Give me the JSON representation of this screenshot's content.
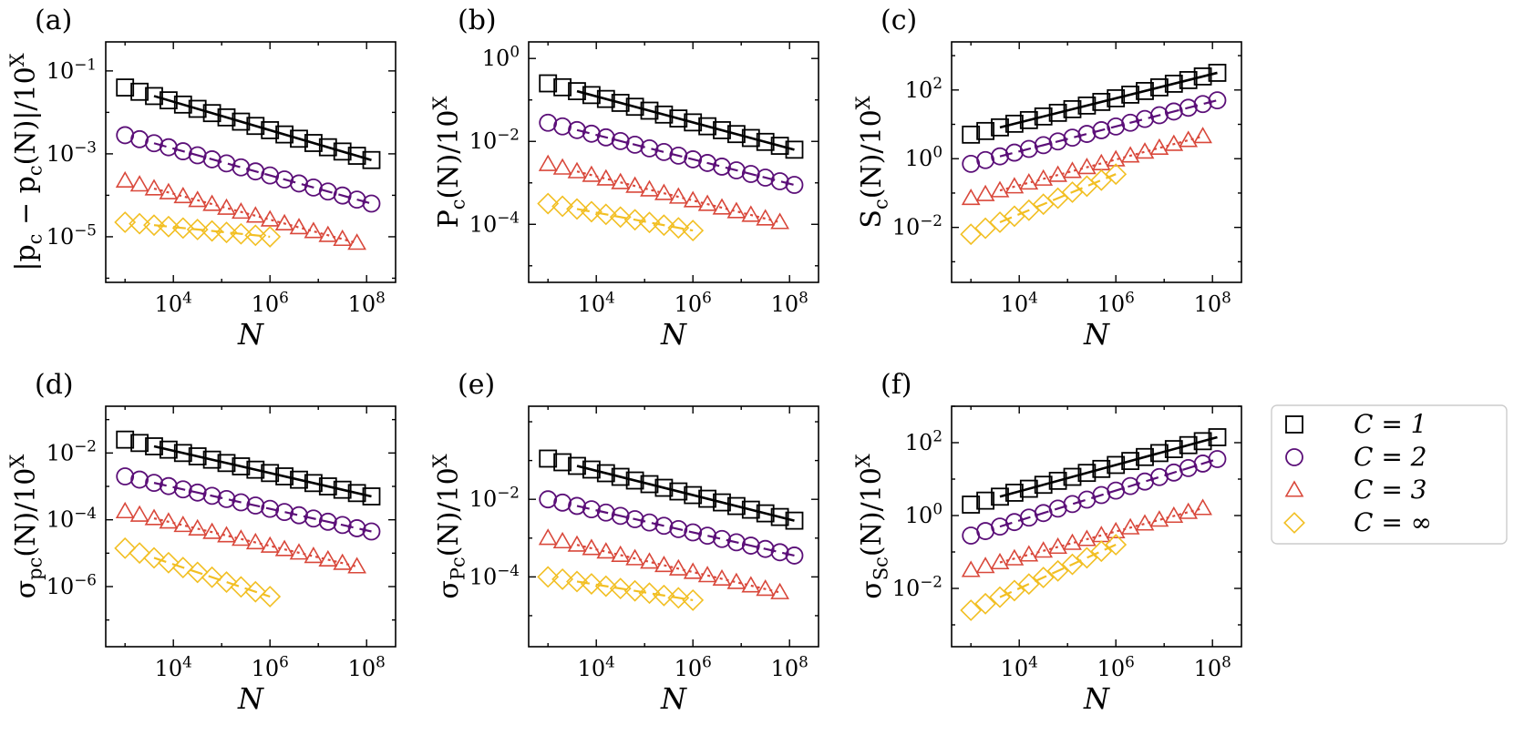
{
  "colors": {
    "C1": "#000000",
    "C2": "#5b0f78",
    "C3": "#d9483b",
    "Cinf": "#f2bf23"
  },
  "legend": {
    "entries": [
      {
        "label": "C = 1",
        "marker": "square",
        "color_key": "C1"
      },
      {
        "label": "C = 2",
        "marker": "circle",
        "color_key": "C2"
      },
      {
        "label": "C = 3",
        "marker": "triangle",
        "color_key": "C3"
      },
      {
        "label": "C = ∞",
        "marker": "diamond",
        "color_key": "Cinf"
      }
    ]
  },
  "chart_data": [
    {
      "panel": "(a)",
      "type": "scatter",
      "xscale": "log",
      "yscale": "log",
      "xlabel": "N",
      "ylabel": "|p_c − p_c(N)|/10^X",
      "xlim_exp": [
        2.6,
        8.6
      ],
      "ylim_exp": [
        -6.1,
        -0.3
      ],
      "xticks": [
        "10^4",
        "10^6",
        "10^8"
      ],
      "yticks": [
        "10^-1",
        "10^-3",
        "10^-5"
      ],
      "series": [
        {
          "name": "C = 1",
          "marker": "square",
          "color_key": "C1",
          "fit": "solid",
          "x_exp_start": 3.0,
          "x_exp_end": 8.1,
          "y_exp_start": -1.4,
          "y_exp_end": -3.15,
          "n_points": 18
        },
        {
          "name": "C = 2",
          "marker": "circle",
          "color_key": "C2",
          "fit": "dashed",
          "x_exp_start": 3.0,
          "x_exp_end": 8.1,
          "y_exp_start": -2.55,
          "y_exp_end": -4.2,
          "n_points": 18
        },
        {
          "name": "C = 3",
          "marker": "triangle",
          "color_key": "C3",
          "fit": "dotted",
          "x_exp_start": 3.0,
          "x_exp_end": 7.8,
          "y_exp_start": -3.65,
          "y_exp_end": -5.15,
          "n_points": 17
        },
        {
          "name": "C = ∞",
          "marker": "diamond",
          "color_key": "Cinf",
          "fit": "dashed",
          "x_exp_start": 3.0,
          "x_exp_end": 6.0,
          "y_exp_start": -4.65,
          "y_exp_end": -5.0,
          "n_points": 11
        }
      ]
    },
    {
      "panel": "(b)",
      "type": "scatter",
      "xscale": "log",
      "yscale": "log",
      "xlabel": "N",
      "ylabel": "P_c(N)/10^X",
      "xlim_exp": [
        2.6,
        8.6
      ],
      "ylim_exp": [
        -5.4,
        0.4
      ],
      "xticks": [
        "10^4",
        "10^6",
        "10^8"
      ],
      "yticks": [
        "10^0",
        "10^-2",
        "10^-4"
      ],
      "series": [
        {
          "name": "C = 1",
          "marker": "square",
          "color_key": "C1",
          "fit": "solid",
          "x_exp_start": 3.0,
          "x_exp_end": 8.1,
          "y_exp_start": -0.6,
          "y_exp_end": -2.2,
          "n_points": 18
        },
        {
          "name": "C = 2",
          "marker": "circle",
          "color_key": "C2",
          "fit": "dashed",
          "x_exp_start": 3.0,
          "x_exp_end": 8.1,
          "y_exp_start": -1.55,
          "y_exp_end": -3.05,
          "n_points": 18
        },
        {
          "name": "C = 3",
          "marker": "triangle",
          "color_key": "C3",
          "fit": "dotted",
          "x_exp_start": 3.0,
          "x_exp_end": 7.8,
          "y_exp_start": -2.55,
          "y_exp_end": -3.95,
          "n_points": 17
        },
        {
          "name": "C = ∞",
          "marker": "diamond",
          "color_key": "Cinf",
          "fit": "dashed",
          "x_exp_start": 3.0,
          "x_exp_end": 6.0,
          "y_exp_start": -3.5,
          "y_exp_end": -4.15,
          "n_points": 11
        }
      ]
    },
    {
      "panel": "(c)",
      "type": "scatter",
      "xscale": "log",
      "yscale": "log",
      "xlabel": "N",
      "ylabel": "S_c(N)/10^X",
      "xlim_exp": [
        2.6,
        8.6
      ],
      "ylim_exp": [
        -3.6,
        3.4
      ],
      "xticks": [
        "10^4",
        "10^6",
        "10^8"
      ],
      "yticks": [
        "10^2",
        "10^0",
        "10^-2"
      ],
      "series": [
        {
          "name": "C = 1",
          "marker": "square",
          "color_key": "C1",
          "fit": "solid",
          "x_exp_start": 3.0,
          "x_exp_end": 8.1,
          "y_exp_start": 0.7,
          "y_exp_end": 2.5,
          "n_points": 18
        },
        {
          "name": "C = 2",
          "marker": "circle",
          "color_key": "C2",
          "fit": "dashed",
          "x_exp_start": 3.0,
          "x_exp_end": 8.1,
          "y_exp_start": -0.15,
          "y_exp_end": 1.7,
          "n_points": 18
        },
        {
          "name": "C = 3",
          "marker": "triangle",
          "color_key": "C3",
          "fit": "dotted",
          "x_exp_start": 3.0,
          "x_exp_end": 7.8,
          "y_exp_start": -1.15,
          "y_exp_end": 0.65,
          "n_points": 17
        },
        {
          "name": "C = ∞",
          "marker": "diamond",
          "color_key": "Cinf",
          "fit": "dashed",
          "x_exp_start": 3.0,
          "x_exp_end": 6.0,
          "y_exp_start": -2.2,
          "y_exp_end": -0.45,
          "n_points": 11
        }
      ]
    },
    {
      "panel": "(d)",
      "type": "scatter",
      "xscale": "log",
      "yscale": "log",
      "xlabel": "N",
      "ylabel": "σ_{p_c}(N)/10^X",
      "xlim_exp": [
        2.6,
        8.6
      ],
      "ylim_exp": [
        -7.8,
        -0.6
      ],
      "xticks": [
        "10^4",
        "10^6",
        "10^8"
      ],
      "yticks": [
        "10^-2",
        "10^-4",
        "10^-6"
      ],
      "series": [
        {
          "name": "C = 1",
          "marker": "square",
          "color_key": "C1",
          "fit": "solid",
          "x_exp_start": 3.0,
          "x_exp_end": 8.1,
          "y_exp_start": -1.6,
          "y_exp_end": -3.3,
          "n_points": 18
        },
        {
          "name": "C = 2",
          "marker": "circle",
          "color_key": "C2",
          "fit": "dashed",
          "x_exp_start": 3.0,
          "x_exp_end": 8.1,
          "y_exp_start": -2.7,
          "y_exp_end": -4.35,
          "n_points": 18
        },
        {
          "name": "C = 3",
          "marker": "triangle",
          "color_key": "C3",
          "fit": "dotted",
          "x_exp_start": 3.0,
          "x_exp_end": 7.8,
          "y_exp_start": -3.75,
          "y_exp_end": -5.4,
          "n_points": 17
        },
        {
          "name": "C = ∞",
          "marker": "diamond",
          "color_key": "Cinf",
          "fit": "dashed",
          "x_exp_start": 3.0,
          "x_exp_end": 6.0,
          "y_exp_start": -4.85,
          "y_exp_end": -6.3,
          "n_points": 11
        }
      ]
    },
    {
      "panel": "(e)",
      "type": "scatter",
      "xscale": "log",
      "yscale": "log",
      "xlabel": "N",
      "ylabel": "σ_{P_c}(N)/10^X",
      "xlim_exp": [
        2.6,
        8.6
      ],
      "ylim_exp": [
        -5.8,
        0.4
      ],
      "xticks": [
        "10^4",
        "10^6",
        "10^8"
      ],
      "yticks": [
        "10^-2",
        "10^-4"
      ],
      "series": [
        {
          "name": "C = 1",
          "marker": "square",
          "color_key": "C1",
          "fit": "solid",
          "x_exp_start": 3.0,
          "x_exp_end": 8.1,
          "y_exp_start": -0.95,
          "y_exp_end": -2.55,
          "n_points": 18
        },
        {
          "name": "C = 2",
          "marker": "circle",
          "color_key": "C2",
          "fit": "dashed",
          "x_exp_start": 3.0,
          "x_exp_end": 8.1,
          "y_exp_start": -2.0,
          "y_exp_end": -3.45,
          "n_points": 18
        },
        {
          "name": "C = 3",
          "marker": "triangle",
          "color_key": "C3",
          "fit": "dotted",
          "x_exp_start": 3.0,
          "x_exp_end": 7.8,
          "y_exp_start": -3.0,
          "y_exp_end": -4.4,
          "n_points": 17
        },
        {
          "name": "C = ∞",
          "marker": "diamond",
          "color_key": "Cinf",
          "fit": "dashed",
          "x_exp_start": 3.0,
          "x_exp_end": 6.0,
          "y_exp_start": -4.0,
          "y_exp_end": -4.6,
          "n_points": 11
        }
      ]
    },
    {
      "panel": "(f)",
      "type": "scatter",
      "xscale": "log",
      "yscale": "log",
      "xlabel": "N",
      "ylabel": "σ_{S_c}(N)/10^X",
      "xlim_exp": [
        2.6,
        8.6
      ],
      "ylim_exp": [
        -3.6,
        3.0
      ],
      "xticks": [
        "10^4",
        "10^6",
        "10^8"
      ],
      "yticks": [
        "10^2",
        "10^0",
        "10^-2"
      ],
      "series": [
        {
          "name": "C = 1",
          "marker": "square",
          "color_key": "C1",
          "fit": "solid",
          "x_exp_start": 3.0,
          "x_exp_end": 8.1,
          "y_exp_start": 0.3,
          "y_exp_end": 2.15,
          "n_points": 18
        },
        {
          "name": "C = 2",
          "marker": "circle",
          "color_key": "C2",
          "fit": "dashed",
          "x_exp_start": 3.0,
          "x_exp_end": 8.1,
          "y_exp_start": -0.55,
          "y_exp_end": 1.55,
          "n_points": 18
        },
        {
          "name": "C = 3",
          "marker": "triangle",
          "color_key": "C3",
          "fit": "dotted",
          "x_exp_start": 3.0,
          "x_exp_end": 7.8,
          "y_exp_start": -1.5,
          "y_exp_end": 0.2,
          "n_points": 17
        },
        {
          "name": "C = ∞",
          "marker": "diamond",
          "color_key": "Cinf",
          "fit": "dashed",
          "x_exp_start": 3.0,
          "x_exp_end": 6.0,
          "y_exp_start": -2.6,
          "y_exp_end": -0.8,
          "n_points": 11
        }
      ]
    }
  ]
}
